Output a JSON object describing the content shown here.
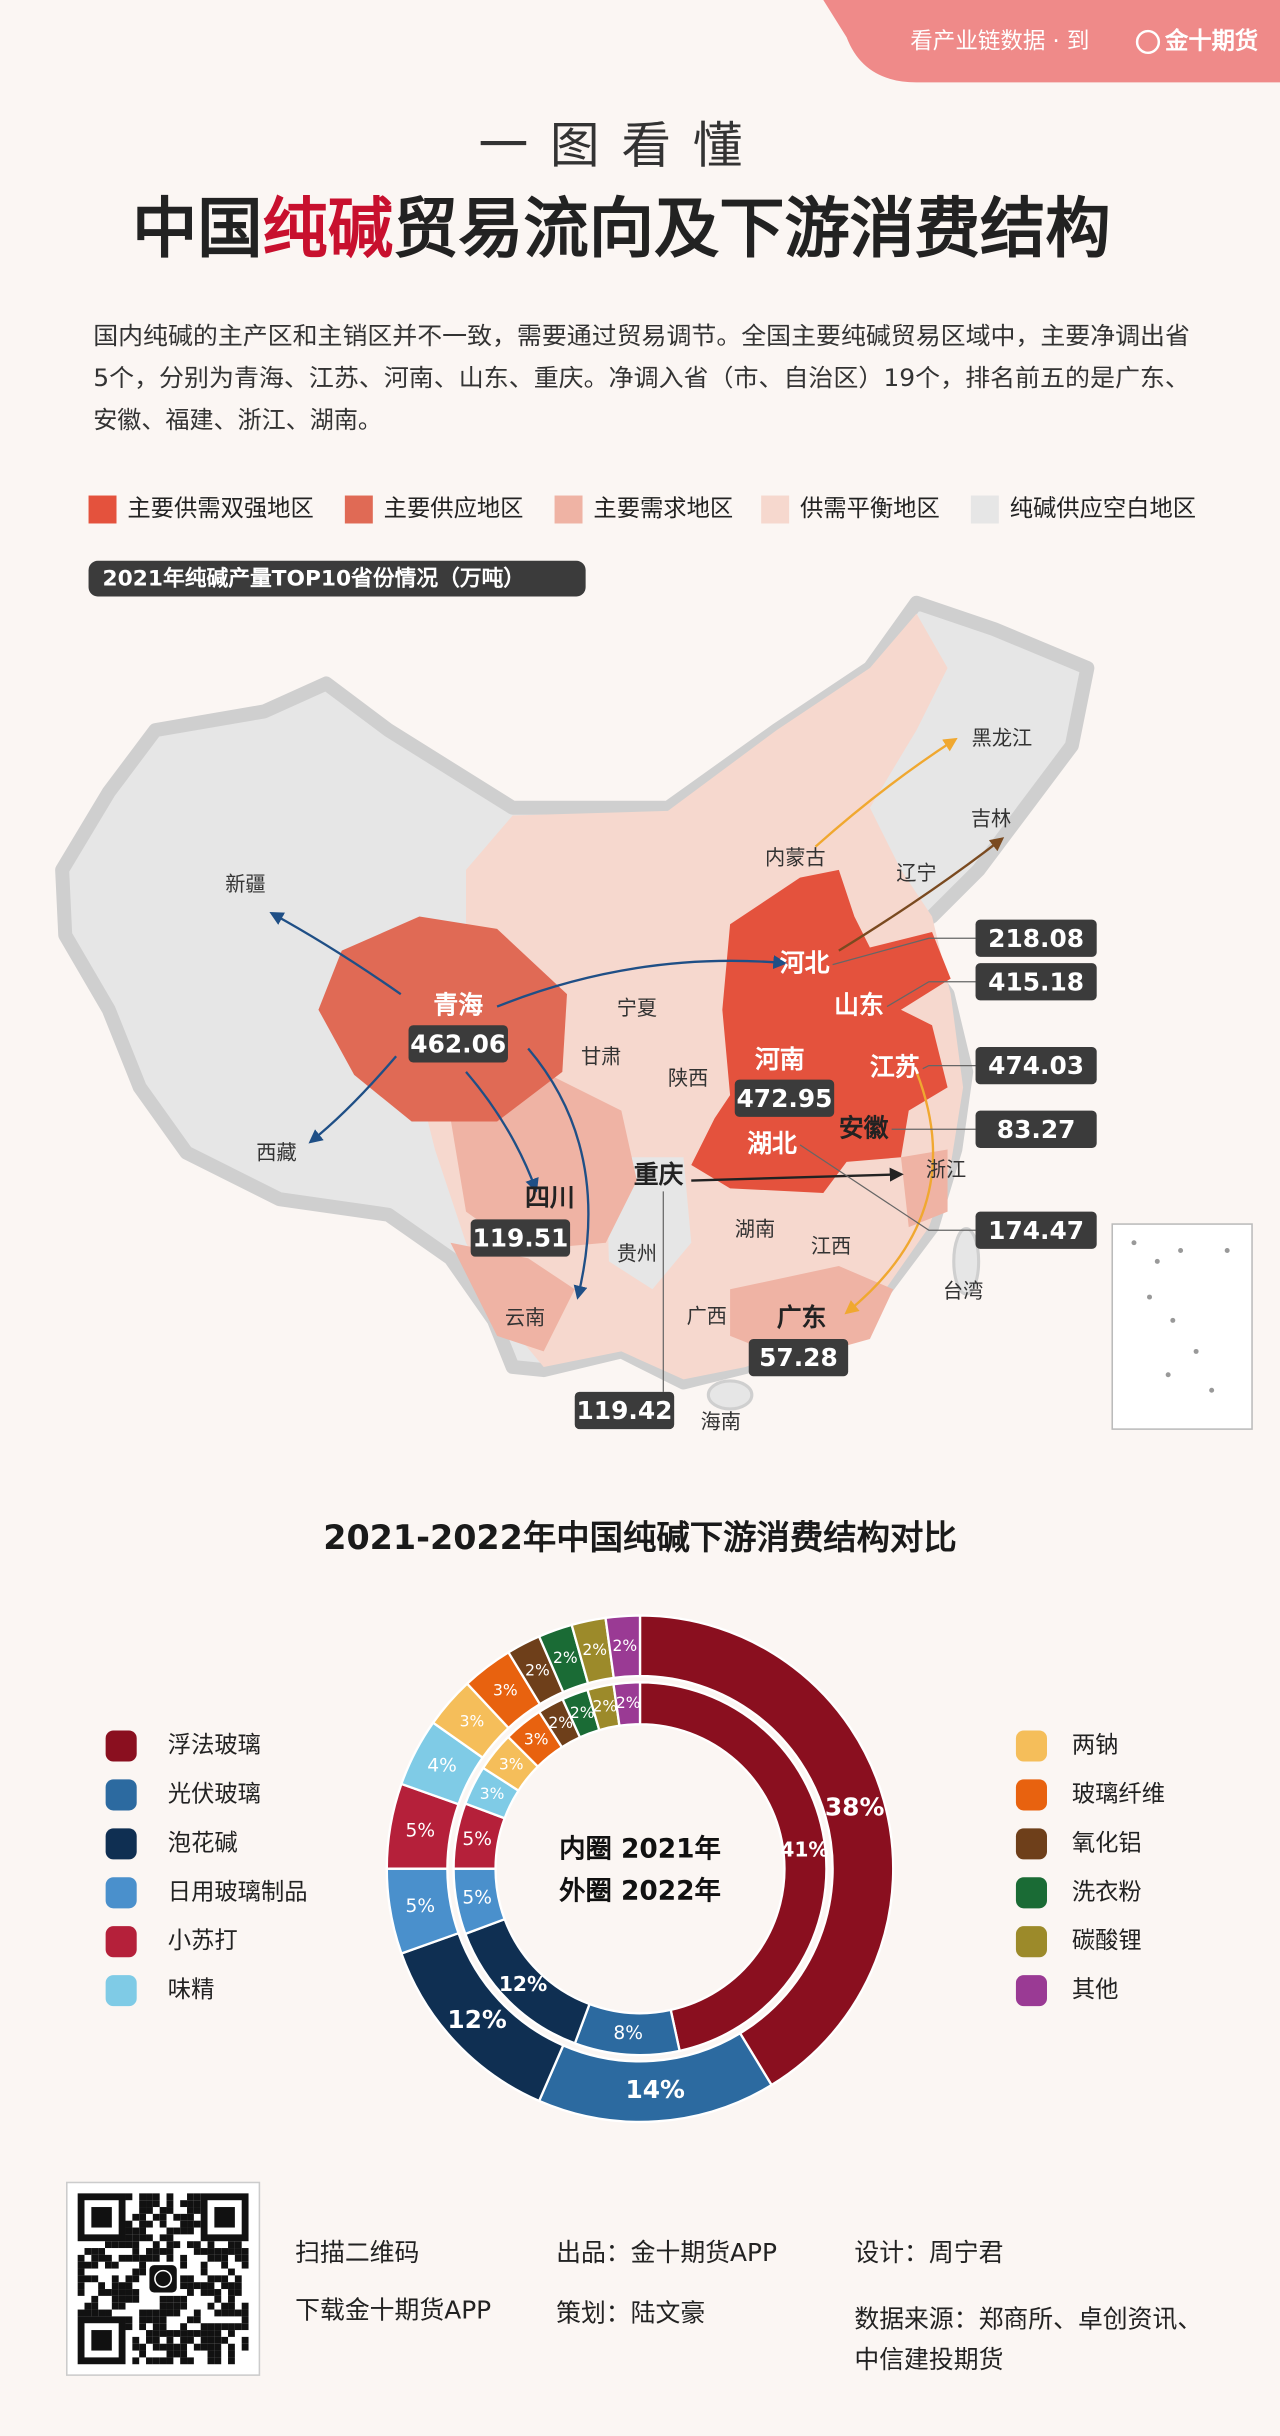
{
  "header": {
    "banner": "看产业链数据 · 到",
    "brand": "金十期货",
    "kicker": "一图看懂",
    "title": [
      {
        "text": "中国",
        "color": "#222222"
      },
      {
        "text": "纯碱",
        "color": "#c8102e"
      },
      {
        "text": "贸易流向及下游消费结构",
        "color": "#222222"
      }
    ],
    "intro": [
      "国内纯碱的主产区和主销区并不一致，需要通过贸易调节。全国主要纯碱贸易区域中，主要净调出省",
      "5个，分别为青海、江苏、河南、山东、重庆。净调入省（市、自治区）19个，排名前五的是广东、",
      "安徽、福建、浙江、湖南。"
    ]
  },
  "legend": [
    {
      "label": "主要供需双强地区",
      "color": "#e4523d"
    },
    {
      "label": "主要供应地区",
      "color": "#e06a55"
    },
    {
      "label": "主要需求地区",
      "color": "#efb3a4"
    },
    {
      "label": "供需平衡地区",
      "color": "#f6d8ce"
    },
    {
      "label": "纯碱供应空白地区",
      "color": "#e6e6e6"
    }
  ],
  "map": {
    "title": "2021年纯碱产量TOP10省份情况（万吨）",
    "provinces": [
      "新疆",
      "西藏",
      "内蒙古",
      "黑龙江",
      "吉林",
      "辽宁",
      "宁夏",
      "甘肃",
      "陕西",
      "贵州",
      "湖南",
      "江西",
      "浙江",
      "云南",
      "广西",
      "台湾",
      "海南"
    ],
    "top10": [
      {
        "province": "青海",
        "value": 462.06
      },
      {
        "province": "河南",
        "value": 472.95
      },
      {
        "province": "江苏",
        "value": 474.03
      },
      {
        "province": "山东",
        "value": 415.18
      },
      {
        "province": "河北",
        "value": 218.08
      },
      {
        "province": "湖北",
        "value": 174.47
      },
      {
        "province": "四川",
        "value": 119.51
      },
      {
        "province": "重庆",
        "value": 119.42
      },
      {
        "province": "安徽",
        "value": 83.27
      },
      {
        "province": "广东",
        "value": 57.28
      }
    ]
  },
  "chart_data": {
    "type": "donut",
    "title": "2021-2022年中国纯碱下游消费结构对比",
    "categories": [
      "浮法玻璃",
      "光伏玻璃",
      "泡花碱",
      "日用玻璃制品",
      "小苏打",
      "味精",
      "两钠",
      "玻璃纤维",
      "氧化铝",
      "洗衣粉",
      "碳酸锂",
      "其他"
    ],
    "colors": [
      "#8a0f1f",
      "#2c6aa0",
      "#0f2f52",
      "#4a90cc",
      "#b5203a",
      "#7fcbe6",
      "#f5be5a",
      "#e8620f",
      "#6e3f1a",
      "#1a6b35",
      "#9c8a2a",
      "#9a3a94"
    ],
    "series": [
      {
        "name": "内圈 2021年",
        "values": [
          41,
          8,
          12,
          5,
          5,
          3,
          3,
          3,
          2,
          2,
          2,
          2
        ],
        "value_labels": [
          "41%",
          "8%",
          "12%",
          "5%",
          "5%",
          "3%",
          "3%",
          "3%",
          "2%",
          "2%",
          "2%",
          "2%"
        ]
      },
      {
        "name": "外圈 2022年",
        "values": [
          38,
          14,
          12,
          5,
          5,
          4,
          3,
          3,
          2,
          2,
          2,
          2
        ],
        "value_labels": [
          "38%",
          "14%",
          "12%",
          "5%",
          "5%",
          "4%",
          "3%",
          "3%",
          "2%",
          "2%",
          "2%",
          "2%"
        ]
      }
    ]
  },
  "footer": {
    "scan": "扫描二维码",
    "download": "下载金十期货APP",
    "producer": "出品：金十期货APP",
    "planner": "策划：陆文豪",
    "designer": "设计：周宁君",
    "source": [
      "数据来源：郑商所、卓创资讯、",
      "中信建投期货"
    ]
  }
}
